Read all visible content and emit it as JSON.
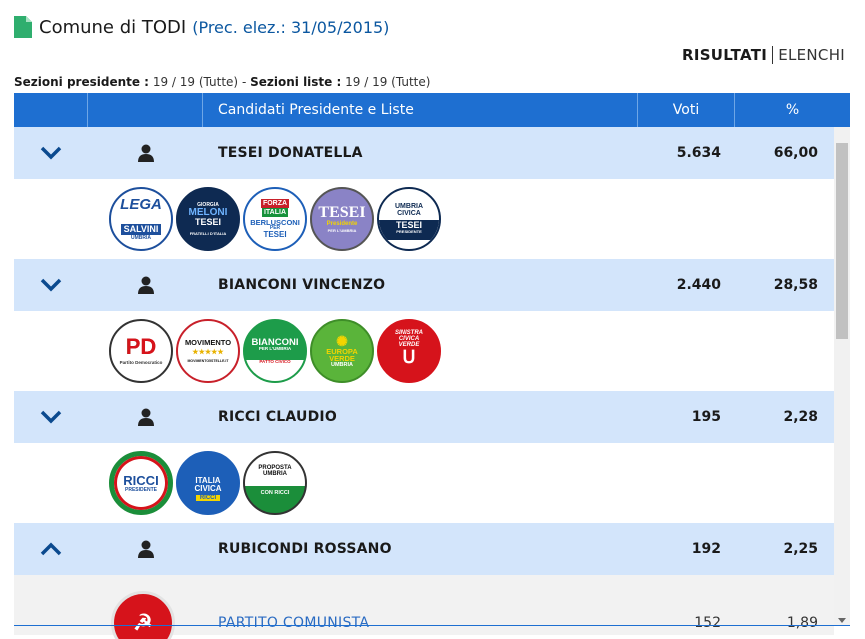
{
  "header": {
    "title": "Comune di TODI",
    "subtitle": "(Prec. elez.: 31/05/2015)"
  },
  "tabs": {
    "risultati": "RISULTATI",
    "elenchi": "ELENCHI"
  },
  "sections": {
    "president_label": "Sezioni presidente :",
    "president_value": "19 / 19 (Tutte)",
    "separator": "-",
    "lists_label": "Sezioni liste :",
    "lists_value": "19 / 19 (Tutte)"
  },
  "table": {
    "col_candidates": "Candidati Presidente e Liste",
    "col_votes": "Voti",
    "col_pct": "%"
  },
  "candidates": [
    {
      "name": "TESEI DONATELLA",
      "votes": "5.634",
      "pct": "66,00",
      "expanded": false,
      "lists": [
        {
          "logo": "lega-salvini-umbria-logo",
          "text": [
            "LEGA",
            "SALVINI",
            "UMBRIA"
          ]
        },
        {
          "logo": "fratelli-italia-logo",
          "text": [
            "GIORGIA",
            "MELONI",
            "TESEI",
            "FRATELLI D'ITALIA"
          ]
        },
        {
          "logo": "forza-italia-logo",
          "text": [
            "FORZA",
            "ITALIA",
            "BERLUSCONI",
            "PER",
            "TESEI"
          ]
        },
        {
          "logo": "tesei-presidente-logo",
          "text": [
            "TESEI",
            "Presidente",
            "PER L'UMBRIA"
          ]
        },
        {
          "logo": "umbria-civica-logo",
          "text": [
            "UMBRIA",
            "CIVICA",
            "TESEI",
            "PRESIDENTE"
          ]
        }
      ]
    },
    {
      "name": "BIANCONI VINCENZO",
      "votes": "2.440",
      "pct": "28,58",
      "expanded": false,
      "lists": [
        {
          "logo": "partito-democratico-logo",
          "text": [
            "PD",
            "Partito Democratico"
          ]
        },
        {
          "logo": "movimento-5-stelle-logo",
          "text": [
            "MOVIMENTO",
            "★★★★★",
            "MOVIMENTO5STELLE.IT"
          ]
        },
        {
          "logo": "bianconi-per-umbria-logo",
          "text": [
            "BIANCONI",
            "PER L'UMBRIA",
            "PATTO CIVICO"
          ]
        },
        {
          "logo": "europa-verde-umbria-logo",
          "text": [
            "EUROPA",
            "VERDE",
            "UMBRIA"
          ]
        },
        {
          "logo": "sinistra-civica-verde-logo",
          "text": [
            "SINISTRA",
            "CIVICA",
            "VERDE"
          ]
        }
      ]
    },
    {
      "name": "RICCI CLAUDIO",
      "votes": "195",
      "pct": "2,28",
      "expanded": false,
      "lists": [
        {
          "logo": "ricci-presidente-logo",
          "text": [
            "RICCI",
            "PRESIDENTE"
          ]
        },
        {
          "logo": "italia-civica-ricci-logo",
          "text": [
            "ITALIA",
            "CIVICA",
            "RICCI"
          ]
        },
        {
          "logo": "proposta-umbria-logo",
          "text": [
            "PROPOSTA",
            "UMBRIA",
            "CON RICCI"
          ]
        }
      ]
    },
    {
      "name": "RUBICONDI ROSSANO",
      "votes": "192",
      "pct": "2,25",
      "expanded": true,
      "lists": [
        {
          "logo": "partito-comunista-logo",
          "name": "PARTITO COMUNISTA",
          "votes": "152",
          "pct": "1,89"
        }
      ]
    }
  ],
  "colors": {
    "header_blue": "#1e6fd1",
    "candidate_row": "#d3e5fb",
    "chevron": "#0b4a8f",
    "title_blue": "#0b57a0",
    "list_link": "#2a6bc2"
  }
}
